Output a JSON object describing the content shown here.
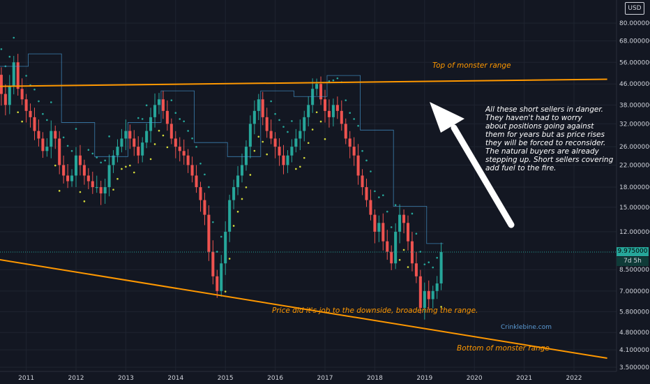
{
  "currency": "USD",
  "colors": {
    "background": "#131722",
    "up": "#26a69a",
    "down": "#ef5350",
    "trendline": "#ff9800",
    "psar": "#d6dc3a",
    "step_line": "#4aa3df",
    "arrow": "#ffffff"
  },
  "price_tag": {
    "value": "9.975000",
    "countdown": "7d 5h"
  },
  "watermark": "Crinklebine.com",
  "annotations": {
    "top": "Top of monster range",
    "bottom": "Bottom of monster range",
    "middle": "Price did it's job to the downside, broadening the range.",
    "note": [
      "All these short sellers in danger.",
      "They haven't had to worry",
      "about positions going against",
      "them for years but as price rises",
      "they will be forced to reconsider.",
      "The natural buyers are already",
      "stepping up. Short sellers covering",
      "add fuel to the fire."
    ]
  },
  "chart_data": {
    "type": "candlestick",
    "y_scale": "log",
    "ylim": [
      3.5,
      95
    ],
    "y_ticks": [
      "3.500000",
      "4.100000",
      "4.800000",
      "5.800000",
      "7.000000",
      "8.500000",
      "12.000000",
      "15.000000",
      "18.000000",
      "22.000000",
      "26.000000",
      "32.000000",
      "38.000000",
      "46.000000",
      "56.000000",
      "68.000000",
      "80.000000"
    ],
    "x_ticks": [
      "2011",
      "2012",
      "2013",
      "2014",
      "2015",
      "2016",
      "2017",
      "2018",
      "2019",
      "2020",
      "2021",
      "2022"
    ],
    "xlim": [
      "2010-05",
      "2022-09"
    ],
    "monthly_close": [
      50,
      42,
      38,
      45,
      56,
      44,
      40,
      36,
      34,
      30,
      28,
      25,
      26,
      30,
      28,
      22,
      20,
      19,
      20,
      24,
      22,
      20,
      19,
      18,
      18,
      17,
      18,
      22,
      24,
      26,
      28,
      30,
      28,
      26,
      24,
      27,
      30,
      34,
      38,
      40,
      36,
      32,
      28,
      26,
      25,
      24,
      22,
      20,
      18,
      16,
      14,
      10,
      8,
      7,
      9,
      12,
      16,
      18,
      20,
      22,
      26,
      32,
      36,
      40,
      34,
      30,
      28,
      26,
      24,
      22,
      24,
      26,
      28,
      30,
      34,
      38,
      44,
      46,
      40,
      36,
      34,
      38,
      36,
      32,
      28,
      26,
      24,
      20,
      18,
      16,
      14,
      12,
      13,
      11,
      10,
      9,
      12,
      14,
      13,
      11,
      9,
      8,
      6,
      7,
      6.5,
      7,
      7.5,
      9.975
    ],
    "trendlines": [
      {
        "name": "Top of monster range",
        "from": [
          "2010-05",
          45
        ],
        "to": [
          "2022-09",
          48
        ]
      },
      {
        "name": "Bottom of monster range",
        "from": [
          "2010-05",
          9.4
        ],
        "to": [
          "2022-09",
          3.8
        ]
      }
    ]
  }
}
